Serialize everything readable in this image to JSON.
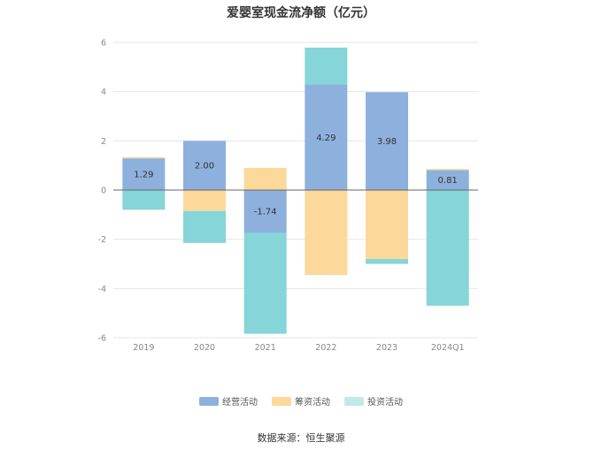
{
  "chart_data": {
    "type": "bar",
    "stacked": true,
    "title": "爱婴室现金流净额（亿元）",
    "categories": [
      "2019",
      "2020",
      "2021",
      "2022",
      "2023",
      "2024Q1"
    ],
    "series": [
      {
        "name": "经营活动",
        "color": "#8eb0dd",
        "values": [
          1.29,
          2.0,
          -1.74,
          4.29,
          3.98,
          0.81
        ],
        "labels": [
          "1.29",
          "2.00",
          "-1.74",
          "4.29",
          "3.98",
          "0.81"
        ]
      },
      {
        "name": "筹资活动",
        "color": "#fdd89b",
        "values": [
          0.05,
          -0.85,
          0.9,
          -3.45,
          -2.8,
          0.05
        ]
      },
      {
        "name": "投资活动",
        "color": "#86d5d8",
        "values": [
          -0.8,
          -1.3,
          -4.1,
          1.5,
          -0.2,
          -4.7
        ]
      }
    ],
    "yticks": [
      "-6",
      "-4",
      "-2",
      "0",
      "2",
      "4",
      "6"
    ],
    "ylim": [
      -6,
      6
    ],
    "grid": true,
    "legend": "bottom"
  },
  "source": "数据来源：恒生聚源"
}
